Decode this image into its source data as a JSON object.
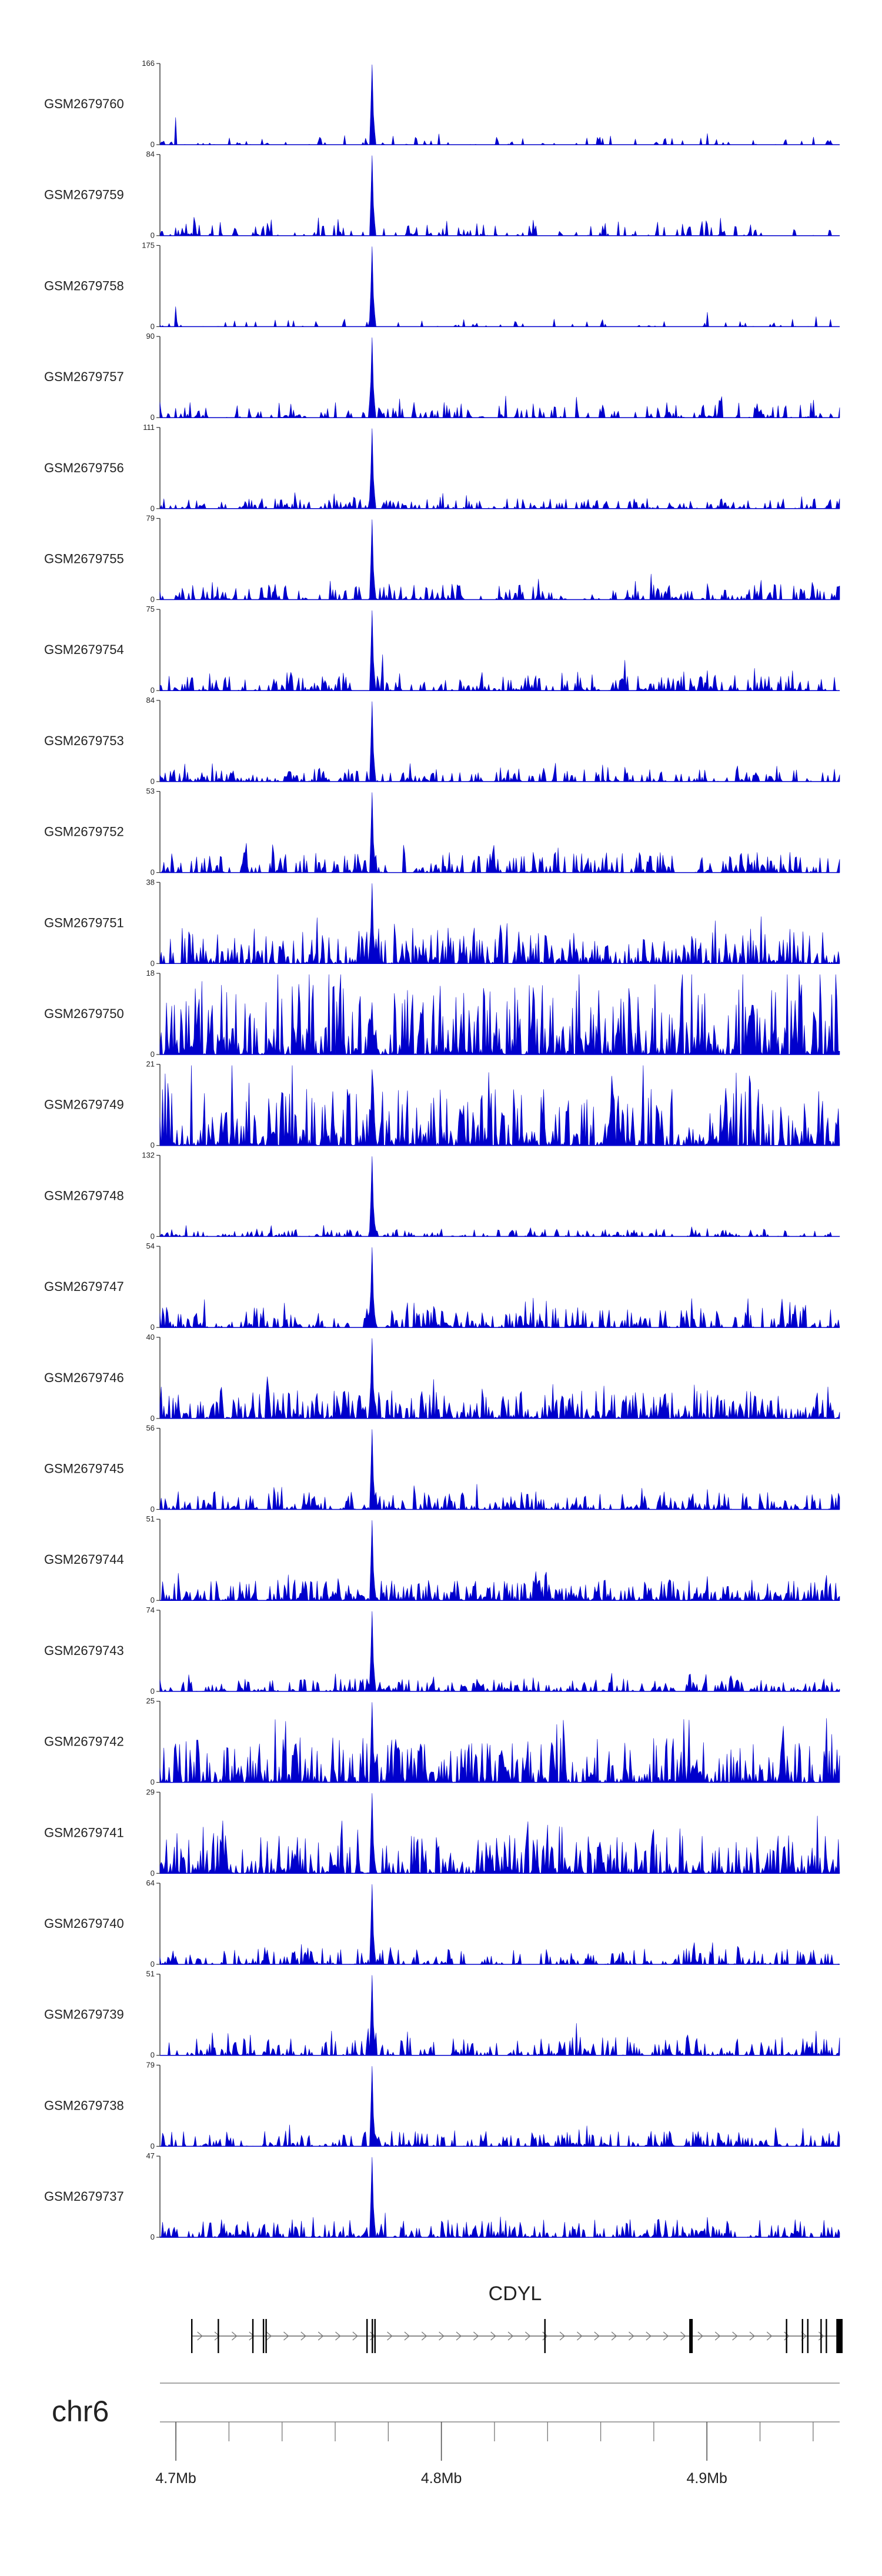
{
  "chart_data": {
    "type": "area",
    "x_unit": "Mb",
    "xlim": [
      4.694,
      4.95
    ],
    "tracks": [
      {
        "name": "GSM2679760",
        "ymax": 166,
        "seed": 11,
        "density": 0.55,
        "base": 0.06,
        "peak": 1.0,
        "extra": [
          [
            4.9,
            0.14
          ],
          [
            4.7,
            0.34
          ]
        ]
      },
      {
        "name": "GSM2679759",
        "ymax": 84,
        "seed": 23,
        "density": 0.75,
        "base": 0.1,
        "peak": 1.0,
        "extra": [
          [
            4.905,
            0.22
          ],
          [
            4.7,
            0.1
          ]
        ]
      },
      {
        "name": "GSM2679758",
        "ymax": 175,
        "seed": 37,
        "density": 0.45,
        "base": 0.06,
        "peak": 1.0,
        "extra": [
          [
            4.7,
            0.25
          ],
          [
            4.9,
            0.18
          ]
        ]
      },
      {
        "name": "GSM2679757",
        "ymax": 90,
        "seed": 41,
        "density": 0.85,
        "base": 0.12,
        "peak": 1.0,
        "extra": [
          [
            4.905,
            0.2
          ]
        ]
      },
      {
        "name": "GSM2679756",
        "ymax": 111,
        "seed": 53,
        "density": 0.9,
        "base": 0.08,
        "peak": 1.0,
        "extra": [
          [
            4.745,
            0.2
          ]
        ]
      },
      {
        "name": "GSM2679755",
        "ymax": 79,
        "seed": 61,
        "density": 0.9,
        "base": 0.12,
        "peak": 1.0,
        "extra": [
          [
            4.879,
            0.32
          ],
          [
            4.9,
            0.2
          ]
        ]
      },
      {
        "name": "GSM2679754",
        "ymax": 75,
        "seed": 71,
        "density": 0.9,
        "base": 0.12,
        "peak": 1.0,
        "extra": [
          [
            4.778,
            0.45
          ],
          [
            4.869,
            0.38
          ],
          [
            4.9,
            0.25
          ]
        ]
      },
      {
        "name": "GSM2679753",
        "ymax": 84,
        "seed": 83,
        "density": 0.9,
        "base": 0.1,
        "peak": 1.0,
        "extra": [
          [
            4.869,
            0.18
          ]
        ]
      },
      {
        "name": "GSM2679752",
        "ymax": 53,
        "seed": 97,
        "density": 0.95,
        "base": 0.16,
        "peak": 1.0,
        "extra": [
          [
            4.928,
            0.22
          ]
        ]
      },
      {
        "name": "GSM2679751",
        "ymax": 38,
        "seed": 101,
        "density": 1.0,
        "base": 0.28,
        "peak": 1.0,
        "extra": [
          [
            4.85,
            0.38
          ],
          [
            4.903,
            0.4
          ]
        ]
      },
      {
        "name": "GSM2679750",
        "ymax": 18,
        "seed": 113,
        "density": 1.0,
        "base": 0.55,
        "peak": 0.65,
        "extra": [
          [
            4.744,
            0.85
          ],
          [
            4.852,
            0.8
          ],
          [
            4.947,
            0.75
          ]
        ]
      },
      {
        "name": "GSM2679749",
        "ymax": 21,
        "seed": 127,
        "density": 1.0,
        "base": 0.45,
        "peak": 0.95,
        "extra": [
          [
            4.765,
            0.6
          ]
        ]
      },
      {
        "name": "GSM2679748",
        "ymax": 132,
        "seed": 131,
        "density": 0.9,
        "base": 0.06,
        "peak": 1.0,
        "extra": [
          [
            4.9,
            0.1
          ]
        ]
      },
      {
        "name": "GSM2679747",
        "ymax": 54,
        "seed": 139,
        "density": 0.95,
        "base": 0.16,
        "peak": 1.0,
        "extra": [
          [
            4.937,
            0.28
          ]
        ]
      },
      {
        "name": "GSM2679746",
        "ymax": 40,
        "seed": 149,
        "density": 1.0,
        "base": 0.22,
        "peak": 1.0,
        "extra": [
          [
            4.9,
            0.35
          ]
        ]
      },
      {
        "name": "GSM2679745",
        "ymax": 56,
        "seed": 157,
        "density": 0.95,
        "base": 0.14,
        "peak": 1.0,
        "extra": [
          [
            4.9,
            0.25
          ]
        ]
      },
      {
        "name": "GSM2679744",
        "ymax": 51,
        "seed": 163,
        "density": 1.0,
        "base": 0.16,
        "peak": 1.0,
        "extra": [
          [
            4.9,
            0.3
          ]
        ]
      },
      {
        "name": "GSM2679743",
        "ymax": 74,
        "seed": 173,
        "density": 0.95,
        "base": 0.1,
        "peak": 1.0,
        "extra": [
          [
            4.76,
            0.22
          ]
        ]
      },
      {
        "name": "GSM2679742",
        "ymax": 25,
        "seed": 181,
        "density": 1.0,
        "base": 0.35,
        "peak": 1.0,
        "extra": [
          [
            4.945,
            0.8
          ],
          [
            4.88,
            0.55
          ]
        ]
      },
      {
        "name": "GSM2679741",
        "ymax": 29,
        "seed": 191,
        "density": 1.0,
        "base": 0.3,
        "peak": 1.0,
        "extra": [
          [
            4.88,
            0.55
          ]
        ]
      },
      {
        "name": "GSM2679740",
        "ymax": 64,
        "seed": 193,
        "density": 0.95,
        "base": 0.12,
        "peak": 1.0,
        "extra": [
          [
            4.755,
            0.2
          ]
        ]
      },
      {
        "name": "GSM2679739",
        "ymax": 51,
        "seed": 197,
        "density": 0.95,
        "base": 0.14,
        "peak": 1.0,
        "extra": [
          [
            4.851,
            0.4
          ]
        ]
      },
      {
        "name": "GSM2679738",
        "ymax": 79,
        "seed": 199,
        "density": 0.95,
        "base": 0.12,
        "peak": 1.0,
        "extra": [
          [
            4.9,
            0.18
          ]
        ]
      },
      {
        "name": "GSM2679737",
        "ymax": 47,
        "seed": 211,
        "density": 0.95,
        "base": 0.14,
        "peak": 1.0,
        "extra": [
          [
            4.9,
            0.25
          ]
        ]
      }
    ],
    "peak_position": 4.774,
    "gene": {
      "name": "CDYL",
      "start": 4.706,
      "end": 4.95,
      "strand": "+",
      "exons": [
        4.706,
        4.716,
        4.729,
        4.733,
        4.734,
        4.772,
        4.774,
        4.775,
        4.839,
        4.894,
        4.93,
        4.936,
        4.938,
        4.943,
        4.945,
        4.949,
        4.95
      ]
    },
    "chromosome": "chr6",
    "ticks": {
      "major": [
        4.7,
        4.8,
        4.9
      ],
      "major_labels": [
        "4.7Mb",
        "4.8Mb",
        "4.9Mb"
      ],
      "minor": [
        4.7,
        4.72,
        4.74,
        4.76,
        4.78,
        4.8,
        4.82,
        4.84,
        4.86,
        4.88,
        4.9,
        4.92,
        4.94
      ]
    }
  }
}
